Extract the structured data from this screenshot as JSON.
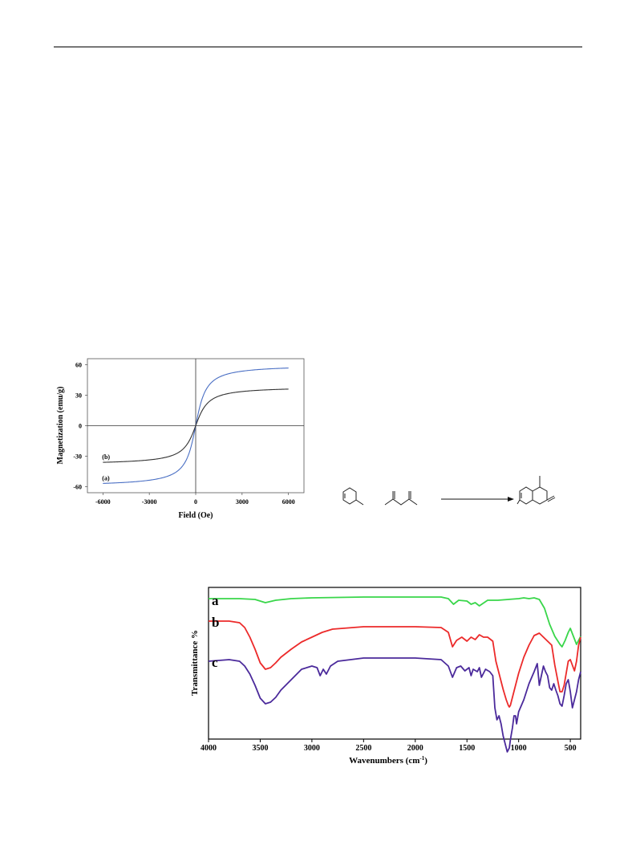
{
  "figures": {
    "magnetization": {
      "chart_data": {
        "type": "line",
        "xlabel": "Field (Oe)",
        "ylabel": "Magnetization (emu/g)",
        "xlim": [
          -7000,
          7000
        ],
        "ylim": [
          -66,
          66
        ],
        "xticks": [
          -6000,
          -3000,
          0,
          3000,
          6000
        ],
        "yticks": [
          -60,
          -30,
          0,
          30,
          60
        ],
        "grid": false,
        "series": [
          {
            "name": "(a)",
            "color": "#4a6fc4",
            "Ms": 60,
            "H0": 500,
            "x": [
              -6000,
              -3000,
              -1000,
              -300,
              0,
              300,
              1000,
              3000,
              6000
            ],
            "y": [
              -59,
              -56,
              -48,
              -26,
              0,
              26,
              48,
              56,
              59
            ]
          },
          {
            "name": "(b)",
            "color": "#333333",
            "Ms": 38.5,
            "H0": 600,
            "x": [
              -6000,
              -3000,
              -1000,
              -300,
              0,
              300,
              1000,
              3000,
              6000
            ],
            "y": [
              -34,
              -30,
              -24,
              -12,
              0,
              12,
              24,
              30,
              37
            ]
          }
        ]
      }
    },
    "ftir": {
      "chart_data": {
        "type": "line",
        "xlabel": "Wavenumbers (cm-1)",
        "xlabel_main": "Wavenumbers (cm",
        "xlabel_sup": "-1",
        "xlabel_end": ")",
        "ylabel": "Transmittance %",
        "xlim": [
          4000,
          400
        ],
        "xticks": [
          4000,
          3500,
          3000,
          2500,
          2000,
          1500,
          1000,
          500
        ],
        "grid": false,
        "series": [
          {
            "name": "a",
            "color": "#39d64a",
            "x": [
              4000,
              3700,
              3550,
              3450,
              3350,
              3200,
              3000,
              2500,
              2000,
              1750,
              1680,
              1630,
              1580,
              1500,
              1460,
              1420,
              1380,
              1300,
              1200,
              1100,
              1000,
              950,
              900,
              850,
              800,
              750,
              700,
              650,
              600,
              580,
              550,
              520,
              500,
              470,
              440,
              420,
              400
            ],
            "y": [
              3,
              3,
              4,
              8,
              5,
              3,
              2,
              1,
              1,
              1,
              3,
              10,
              5,
              6,
              10,
              8,
              12,
              5,
              5,
              4,
              3,
              2,
              3,
              2,
              4,
              15,
              35,
              50,
              60,
              63,
              55,
              45,
              40,
              50,
              60,
              55,
              50
            ]
          },
          {
            "name": "b",
            "color": "#ec2a2a",
            "x": [
              4000,
              3800,
              3700,
              3650,
              3600,
              3550,
              3500,
              3450,
              3400,
              3350,
              3300,
              3200,
              3100,
              3000,
              2900,
              2800,
              2500,
              2000,
              1750,
              1680,
              1640,
              1600,
              1550,
              1500,
              1460,
              1420,
              1380,
              1340,
              1300,
              1250,
              1220,
              1180,
              1150,
              1120,
              1100,
              1090,
              1080,
              1050,
              1000,
              950,
              900,
              850,
              800,
              760,
              720,
              680,
              650,
              620,
              600,
              580,
              560,
              540,
              520,
              500,
              480,
              460,
              440,
              420,
              400
            ],
            "y": [
              30,
              30,
              32,
              38,
              50,
              65,
              82,
              90,
              88,
              82,
              75,
              65,
              56,
              50,
              44,
              40,
              37,
              37,
              38,
              44,
              62,
              54,
              50,
              55,
              50,
              53,
              47,
              50,
              50,
              55,
              80,
              100,
              115,
              128,
              135,
              137,
              135,
              120,
              95,
              75,
              60,
              48,
              45,
              50,
              55,
              60,
              85,
              105,
              118,
              118,
              110,
              95,
              80,
              78,
              85,
              92,
              80,
              60,
              50
            ]
          },
          {
            "name": "c",
            "color": "#4b2a9b",
            "x": [
              4000,
              3800,
              3700,
              3650,
              3600,
              3550,
              3500,
              3450,
              3400,
              3350,
              3300,
              3200,
              3100,
              3000,
              2950,
              2920,
              2890,
              2860,
              2820,
              2750,
              2500,
              2000,
              1750,
              1680,
              1640,
              1600,
              1560,
              1520,
              1480,
              1460,
              1440,
              1400,
              1380,
              1360,
              1320,
              1280,
              1250,
              1230,
              1210,
              1190,
              1170,
              1150,
              1130,
              1110,
              1090,
              1080,
              1060,
              1045,
              1030,
              1020,
              1000,
              950,
              900,
              850,
              820,
              800,
              780,
              760,
              740,
              720,
              700,
              680,
              660,
              640,
              620,
              600,
              580,
              560,
              540,
              520,
              500,
              480,
              460,
              440,
              420,
              400
            ],
            "y": [
              82,
              80,
              82,
              88,
              98,
              112,
              128,
              135,
              133,
              127,
              118,
              105,
              92,
              88,
              90,
              100,
              92,
              98,
              88,
              82,
              78,
              78,
              80,
              88,
              102,
              90,
              88,
              94,
              90,
              100,
              92,
              95,
              90,
              102,
              92,
              95,
              100,
              140,
              155,
              150,
              160,
              175,
              185,
              195,
              190,
              180,
              165,
              150,
              150,
              160,
              145,
              130,
              110,
              95,
              85,
              112,
              100,
              88,
              95,
              100,
              115,
              118,
              110,
              118,
              125,
              135,
              138,
              125,
              110,
              105,
              120,
              140,
              130,
              120,
              105,
              95
            ]
          }
        ]
      }
    },
    "scheme": {
      "arrow": "→"
    }
  }
}
